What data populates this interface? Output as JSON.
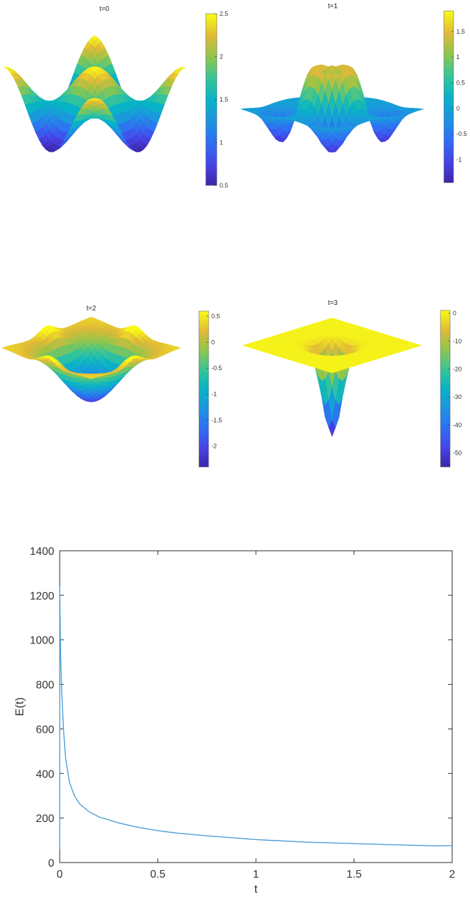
{
  "chart_data": [
    {
      "type": "surface",
      "title": "t=0",
      "colorbar": {
        "ticks": [
          "0.5",
          "1",
          "1.5",
          "2",
          "2.5"
        ],
        "range": [
          0.5,
          2.5
        ]
      },
      "colormap": "parula"
    },
    {
      "type": "surface",
      "title": "t=1",
      "colorbar": {
        "ticks": [
          "-1",
          "-0.5",
          "0",
          "0.5",
          "1",
          "1.5"
        ],
        "range": [
          -1.45,
          1.9
        ]
      },
      "colormap": "parula"
    },
    {
      "type": "surface",
      "title": "t=2",
      "colorbar": {
        "ticks": [
          "-2",
          "-1.5",
          "-1",
          "-0.5",
          "0",
          "0.5"
        ],
        "range": [
          -2.4,
          0.6
        ]
      },
      "colormap": "parula"
    },
    {
      "type": "surface",
      "title": "t=3",
      "colorbar": {
        "ticks": [
          "-50",
          "-40",
          "-30",
          "-20",
          "-10",
          "0"
        ],
        "range": [
          -55,
          1
        ]
      },
      "colormap": "parula"
    },
    {
      "type": "line",
      "xlabel": "t",
      "ylabel": "E(t)",
      "xlim": [
        0,
        2
      ],
      "ylim": [
        0,
        1400
      ],
      "xticks": [
        "0",
        "0.5",
        "1",
        "1.5",
        "2"
      ],
      "yticks": [
        "0",
        "200",
        "400",
        "600",
        "800",
        "1000",
        "1200",
        "1400"
      ],
      "grid": false,
      "series": [
        {
          "color": "#4b9cd3",
          "x": [
            0,
            0.0005,
            0.002,
            0.005,
            0.01,
            0.02,
            0.03,
            0.05,
            0.075,
            0.1,
            0.15,
            0.2,
            0.3,
            0.4,
            0.5,
            0.6,
            0.75,
            1.0,
            1.25,
            1.5,
            1.75,
            1.9,
            2.0
          ],
          "y": [
            60,
            1240,
            1100,
            920,
            770,
            590,
            470,
            360,
            300,
            265,
            228,
            205,
            178,
            158,
            143,
            132,
            120,
            103,
            92,
            85,
            79,
            75,
            76
          ]
        }
      ]
    }
  ],
  "colors": {
    "line": "#4b9cd3",
    "axis": "#262626",
    "parula_low": "#3e26a8",
    "parula_high": "#f9fb15"
  }
}
